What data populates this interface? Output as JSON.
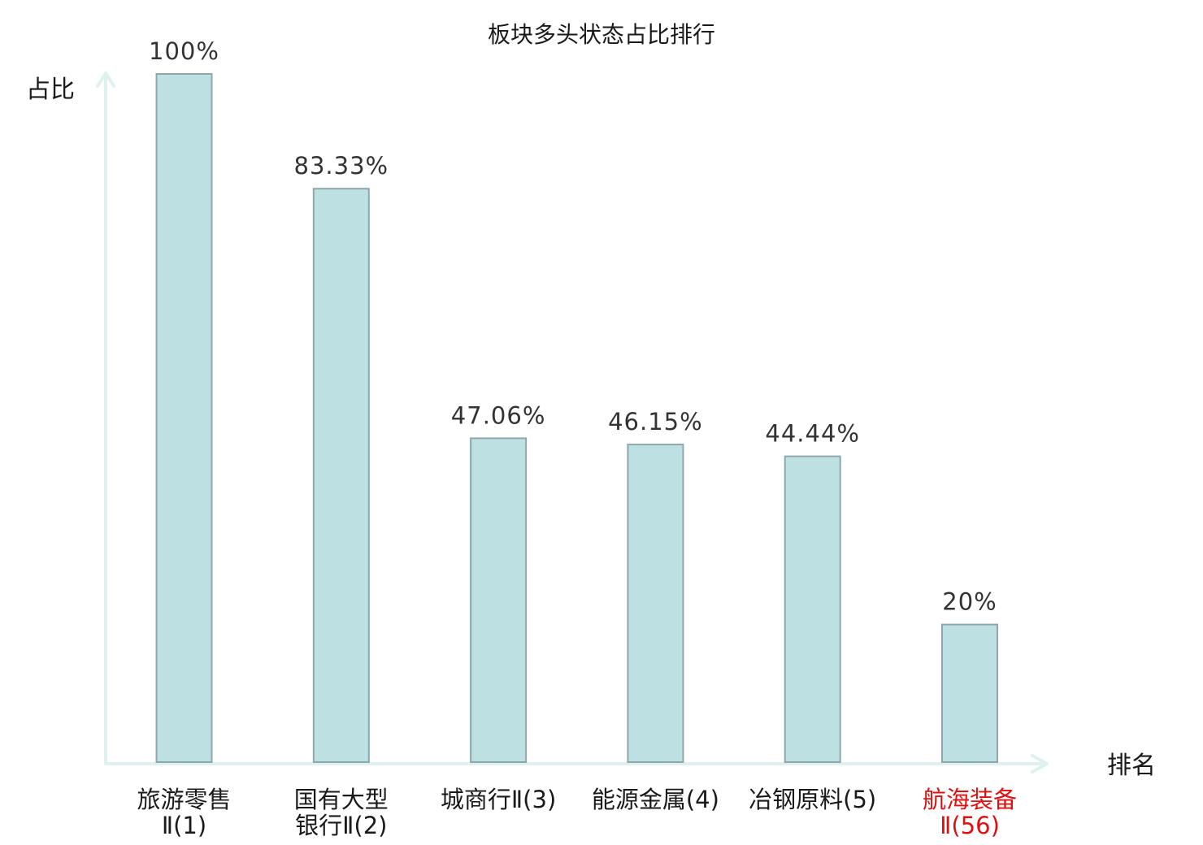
{
  "chart_data": {
    "type": "bar",
    "title": "板块多头状态占比排行",
    "ylabel": "占比",
    "xlabel": "排名",
    "ylim": [
      0,
      100
    ],
    "grid": false,
    "categories": [
      {
        "line1": "旅游零售",
        "line2": "Ⅱ(1)",
        "highlight": false
      },
      {
        "line1": "国有大型",
        "line2": "银行Ⅱ(2)",
        "highlight": false
      },
      {
        "line1": "城商行Ⅱ(3)",
        "line2": "",
        "highlight": false
      },
      {
        "line1": "能源金属(4)",
        "line2": "",
        "highlight": false
      },
      {
        "line1": "冶钢原料(5)",
        "line2": "",
        "highlight": false
      },
      {
        "line1": "航海装备",
        "line2": "Ⅱ(56)",
        "highlight": true
      }
    ],
    "values": [
      100,
      83.33,
      47.06,
      46.15,
      44.44,
      20
    ],
    "value_labels": [
      "100%",
      "83.33%",
      "47.06%",
      "46.15%",
      "44.44%",
      "20%"
    ]
  },
  "colors": {
    "bar_fill": "#bde0e3",
    "bar_stroke": "#8fa7ab",
    "axis": "#dff1ef",
    "text": "#1a1a1a",
    "value_text": "#333333",
    "highlight_text": "#e01010"
  }
}
